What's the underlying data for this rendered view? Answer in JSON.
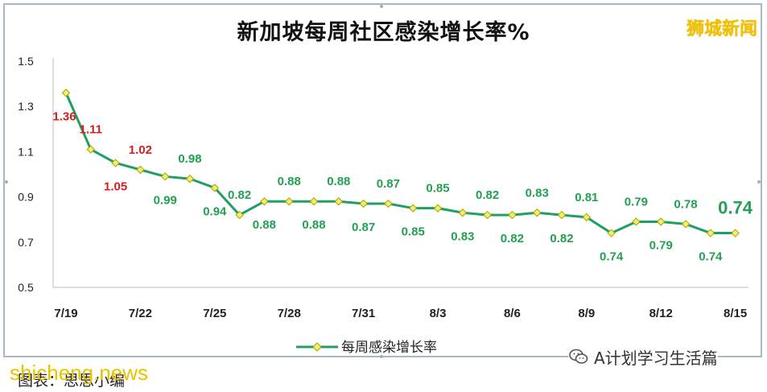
{
  "title": "新加坡每周社区感染增长率%",
  "brand": "狮城新闻",
  "source_account": "A计划学习生活篇",
  "watermark": "shicheng.news",
  "caption": "图表：思思小编",
  "colors": {
    "line": "#1fa060",
    "marker_fill": "#f2ef6a",
    "marker_stroke": "#a9a300",
    "label_green": "#23a052",
    "label_red": "#d22020",
    "grid": "#d9d9d9",
    "brand": "#f2c200"
  },
  "chart_data": {
    "type": "line",
    "title": "新加坡每周社区感染增长率%",
    "x_tick_labels": [
      "7/19",
      "7/22",
      "7/25",
      "7/28",
      "7/31",
      "8/3",
      "8/6",
      "8/9",
      "8/12",
      "8/15"
    ],
    "x_tick_indices": [
      0,
      3,
      6,
      9,
      12,
      15,
      18,
      21,
      24,
      27
    ],
    "y_tick_labels": [
      "1.5",
      "1.3",
      "1.1",
      "0.9",
      "0.7",
      "0.5"
    ],
    "ylim": [
      0.5,
      1.5
    ],
    "grid": false,
    "legend_position": "bottom-center",
    "series": [
      {
        "name": "每周感染增长率",
        "values": [
          1.36,
          1.11,
          1.05,
          1.02,
          0.99,
          0.98,
          0.94,
          0.82,
          0.88,
          0.88,
          0.88,
          0.88,
          0.87,
          0.87,
          0.85,
          0.85,
          0.83,
          0.82,
          0.82,
          0.83,
          0.82,
          0.81,
          0.74,
          0.79,
          0.79,
          0.78,
          0.74,
          0.74
        ],
        "data_labels": [
          "1.36",
          "1.11",
          "1.05",
          "1.02",
          "0.99",
          "0.98",
          "0.94",
          "0.82",
          "0.88",
          "0.88",
          "0.88",
          "0.88",
          "0.87",
          "0.87",
          "0.85",
          "0.85",
          "0.83",
          "0.82",
          "0.82",
          "0.83",
          "0.82",
          "0.81",
          "0.74",
          "0.79",
          "0.79",
          "0.78",
          "0.74",
          "0.74"
        ],
        "red_labels": [
          "1.36",
          "1.11",
          "1.05",
          "1.02"
        ],
        "highlight_label": "0.74"
      }
    ]
  }
}
